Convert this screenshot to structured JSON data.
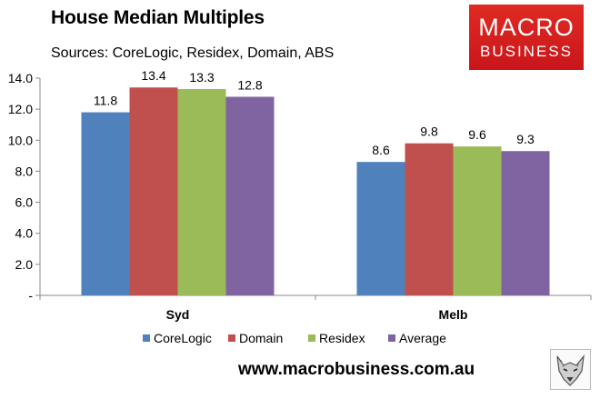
{
  "header": {
    "title": "House Median Multiples",
    "subtitle": "Sources: CoreLogic, Residex, Domain, ABS"
  },
  "logo": {
    "line1": "MACRO",
    "line2": "BUSINESS",
    "color": "#d81e1e"
  },
  "footer": {
    "url": "www.macrobusiness.com.au",
    "wolf_icon": "wolf-head-icon"
  },
  "chart_data": {
    "type": "bar",
    "title": "House Median Multiples",
    "subtitle": "Sources: CoreLogic, Residex, Domain, ABS",
    "xlabel": "",
    "ylabel": "",
    "categories": [
      "Syd",
      "Melb"
    ],
    "series": [
      {
        "name": "CoreLogic",
        "color": "#4f81bd",
        "values": [
          11.8,
          8.6
        ],
        "labels": [
          "11.8",
          "8.6"
        ]
      },
      {
        "name": "Domain",
        "color": "#c0504d",
        "values": [
          13.4,
          9.8
        ],
        "labels": [
          "13.4",
          "9.8"
        ]
      },
      {
        "name": "Residex",
        "color": "#9bbb59",
        "values": [
          13.3,
          9.6
        ],
        "labels": [
          "13.3",
          "9.6"
        ]
      },
      {
        "name": "Average",
        "color": "#8064a2",
        "values": [
          12.8,
          9.3
        ],
        "labels": [
          "12.8",
          "9.3"
        ]
      }
    ],
    "ylim": [
      0,
      14
    ],
    "yticks": [
      "-",
      "2.0",
      "4.0",
      "6.0",
      "8.0",
      "10.0",
      "12.0",
      "14.0"
    ],
    "grid": false,
    "legend": "bottom"
  }
}
